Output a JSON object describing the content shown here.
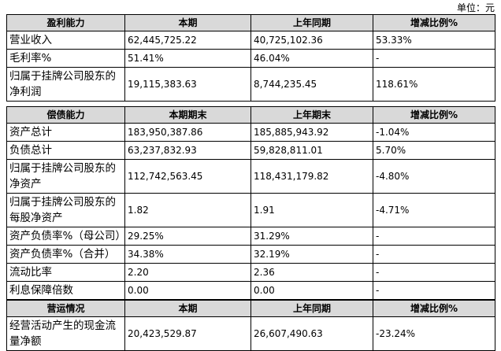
{
  "unit": "单位：元",
  "tables": [
    {
      "header": [
        "盈利能力",
        "本期",
        "上年同期",
        "增减比例%"
      ],
      "rows": [
        [
          "营业收入",
          "62,445,725.22",
          "40,725,102.36",
          "53.33%"
        ],
        [
          "毛利率%",
          "51.41%",
          "46.04%",
          "-"
        ],
        [
          "归属于挂牌公司股东的净利润",
          "19,115,383.63",
          "8,744,235.45",
          "118.61%"
        ]
      ]
    },
    {
      "header": [
        "偿债能力",
        "本期期末",
        "上年期末",
        "增减比例%"
      ],
      "rows": [
        [
          "资产总计",
          "183,950,387.86",
          "185,885,943.92",
          "-1.04%"
        ],
        [
          "负债总计",
          "63,237,832.93",
          "59,828,811.01",
          "5.70%"
        ],
        [
          "归属于挂牌公司股东的净资产",
          "112,742,563.45",
          "118,431,179.82",
          "-4.80%"
        ],
        [
          "归属于挂牌公司股东的每股净资产",
          "1.82",
          "1.91",
          "-4.71%"
        ],
        [
          "资产负债率%（母公司）",
          "29.25%",
          "31.29%",
          "-"
        ],
        [
          "资产负债率%（合并）",
          "34.38%",
          "32.19%",
          "-"
        ],
        [
          "流动比率",
          "2.20",
          "2.36",
          "-"
        ],
        [
          "利息保障倍数",
          "0.00",
          "0.00",
          "-"
        ]
      ]
    },
    {
      "header": [
        "营运情况",
        "本期",
        "上年同期",
        "增减比例%"
      ],
      "rows": [
        [
          "经营活动产生的现金流量净额",
          "20,423,529.87",
          "26,607,490.63",
          "-23.24%"
        ]
      ]
    }
  ]
}
